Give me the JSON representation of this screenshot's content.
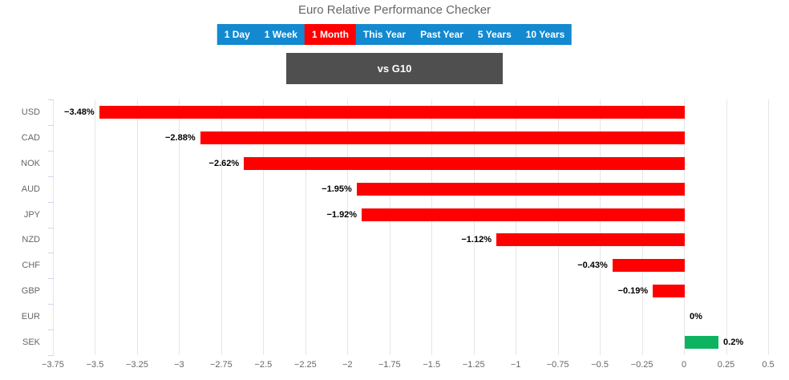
{
  "title": "Euro Relative Performance Checker",
  "tabs": {
    "items": [
      {
        "label": "1 Day",
        "active": false
      },
      {
        "label": "1 Week",
        "active": false
      },
      {
        "label": "1 Month",
        "active": true
      },
      {
        "label": "This Year",
        "active": false
      },
      {
        "label": "Past Year",
        "active": false
      },
      {
        "label": "5 Years",
        "active": false
      },
      {
        "label": "10 Years",
        "active": false
      }
    ]
  },
  "group_button": {
    "label": "vs G10"
  },
  "colors": {
    "tab_background": "#1389d0",
    "tab_active": "#ff0000",
    "button_background": "#4f4f4f",
    "bar_negative": "#ff0000",
    "bar_positive": "#0cb462",
    "gridline": "#e6e6e6",
    "axis_line": "#ccd6eb",
    "axis_text": "#666666",
    "title_text": "#666666",
    "data_label_text": "#000000"
  },
  "chart_data": {
    "type": "bar",
    "orientation": "horizontal",
    "title": "Euro Relative Performance Checker",
    "categories": [
      "USD",
      "CAD",
      "NOK",
      "AUD",
      "JPY",
      "NZD",
      "CHF",
      "GBP",
      "EUR",
      "SEK"
    ],
    "values": [
      -3.48,
      -2.88,
      -2.62,
      -1.95,
      -1.92,
      -1.12,
      -0.43,
      -0.19,
      0,
      0.2
    ],
    "value_labels": [
      "−3.48%",
      "−2.88%",
      "−2.62%",
      "−1.95%",
      "−1.92%",
      "−1.12%",
      "−0.43%",
      "−0.19%",
      "0%",
      "0.2%"
    ],
    "xlim": [
      -3.75,
      0.5
    ],
    "tick_step": 0.25,
    "x_ticks": [
      "−3.75",
      "−3.5",
      "−3.25",
      "−3",
      "−2.75",
      "−2.5",
      "−2.25",
      "−2",
      "−1.75",
      "−1.5",
      "−1.25",
      "−1",
      "−0.75",
      "−0.5",
      "−0.25",
      "0",
      "0.25",
      "0.5"
    ],
    "grid": true,
    "legend": "none",
    "xlabel": "",
    "ylabel": ""
  }
}
